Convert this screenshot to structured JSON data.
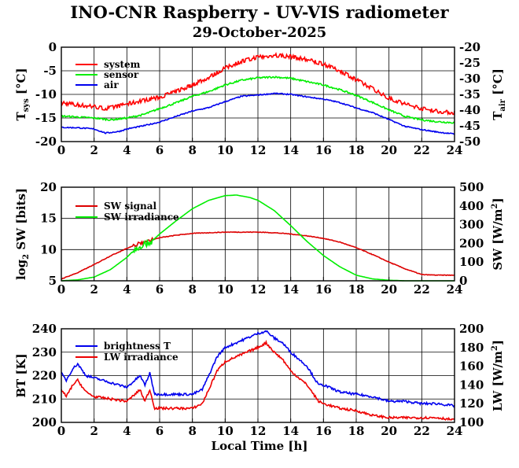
{
  "title": "INO-CNR Raspberry - UV-VIS radiometer",
  "subtitle": "29-October-2025",
  "xlabel": "Local Time [h]",
  "chart_data": [
    {
      "type": "line",
      "name": "temperature",
      "x_ticks": [
        "0",
        "2",
        "4",
        "6",
        "8",
        "10",
        "12",
        "14",
        "16",
        "18",
        "20",
        "22",
        "24"
      ],
      "xlim": [
        0,
        24
      ],
      "ylabel_left": "T",
      "ylabel_left_sub": "sys",
      "ylabel_left_unit": "[°C]",
      "ylim_left": [
        -20,
        0
      ],
      "yticks_left": [
        "0",
        "-5",
        "-10",
        "-15",
        "-20"
      ],
      "ylabel_right": "T",
      "ylabel_right_sub": "air",
      "ylabel_right_unit": "[°C]",
      "ylim_right": [
        -50,
        -20
      ],
      "yticks_right": [
        "-20",
        "-25",
        "-30",
        "-35",
        "-40",
        "-45",
        "-50"
      ],
      "series": [
        {
          "name": "system",
          "axis": "left",
          "color": "#ff0000",
          "x": [
            0,
            1,
            2,
            2.7,
            3.5,
            4,
            5,
            6,
            7,
            8,
            9,
            10,
            11,
            12,
            13,
            14,
            15,
            16,
            17,
            18,
            19,
            20,
            21,
            22,
            23,
            24
          ],
          "y": [
            -11.8,
            -12.2,
            -12.6,
            -13.0,
            -12.5,
            -12.0,
            -11.3,
            -10.6,
            -9.4,
            -8.0,
            -6.4,
            -4.4,
            -3.0,
            -2.1,
            -1.7,
            -2.0,
            -2.6,
            -3.6,
            -5.0,
            -6.9,
            -8.8,
            -10.8,
            -12.1,
            -13.0,
            -13.6,
            -13.9
          ]
        },
        {
          "name": "sensor",
          "axis": "left",
          "color": "#00ee00",
          "x": [
            0,
            1,
            2,
            3,
            4,
            5,
            6,
            7,
            8,
            9,
            10,
            11,
            12,
            13,
            14,
            15,
            16,
            17,
            18,
            19,
            20,
            21,
            22,
            23,
            24
          ],
          "y": [
            -14.6,
            -14.8,
            -15.0,
            -15.4,
            -15.0,
            -14.3,
            -13.0,
            -11.8,
            -10.4,
            -9.4,
            -8.0,
            -7.0,
            -6.5,
            -6.3,
            -6.6,
            -7.3,
            -8.0,
            -9.0,
            -10.2,
            -11.7,
            -13.3,
            -14.7,
            -15.4,
            -15.8,
            -16.0
          ]
        },
        {
          "name": "air",
          "axis": "right",
          "color": "#0000ee",
          "x": [
            0,
            1,
            2,
            2.7,
            3.5,
            4,
            5,
            6,
            7,
            8,
            9,
            10,
            11,
            12,
            13,
            14,
            15,
            16,
            17,
            18,
            19,
            20,
            21,
            22,
            23,
            24
          ],
          "y": [
            -45.5,
            -45.6,
            -46.0,
            -47.3,
            -46.8,
            -46.0,
            -45.0,
            -43.8,
            -42.0,
            -40.3,
            -39.2,
            -37.3,
            -35.6,
            -35.2,
            -34.7,
            -35.0,
            -35.8,
            -36.5,
            -37.6,
            -39.3,
            -40.8,
            -43.0,
            -45.2,
            -46.2,
            -47.0,
            -47.6
          ]
        }
      ]
    },
    {
      "type": "line",
      "name": "shortwave",
      "x_ticks": [
        "0",
        "2",
        "4",
        "6",
        "8",
        "10",
        "12",
        "14",
        "16",
        "18",
        "20",
        "22",
        "24"
      ],
      "xlim": [
        0,
        24
      ],
      "ylabel_left": "log",
      "ylabel_left_sub": "2",
      "ylabel_left_unit": "SW [bits]",
      "ylim_left": [
        5,
        20
      ],
      "yticks_left": [
        "20",
        "15",
        "10",
        "5"
      ],
      "ylabel_right": "SW [W/m",
      "ylabel_right_sup": "2",
      "ylabel_right_unit": "]",
      "ylim_right": [
        0,
        500
      ],
      "yticks_right": [
        "500",
        "400",
        "300",
        "200",
        "100",
        "0"
      ],
      "series": [
        {
          "name": "SW signal",
          "axis": "left",
          "color": "#dd0000",
          "x": [
            0,
            1,
            2,
            3,
            4,
            5,
            6,
            7,
            8,
            9,
            10,
            11,
            12,
            13,
            14,
            15,
            16,
            17,
            18,
            19,
            20,
            21,
            22,
            23,
            24
          ],
          "y": [
            5.3,
            6.3,
            7.6,
            9.0,
            10.2,
            11.2,
            11.9,
            12.3,
            12.6,
            12.7,
            12.8,
            12.8,
            12.8,
            12.7,
            12.5,
            12.2,
            11.8,
            11.2,
            10.3,
            9.2,
            8.0,
            6.9,
            6.0,
            5.9,
            5.9
          ]
        },
        {
          "name": "SW irradiance",
          "axis": "right",
          "color": "#00ee00",
          "x": [
            0,
            1,
            2,
            3,
            4,
            4.5,
            5,
            5.5,
            6,
            7,
            8,
            9,
            10,
            10.7,
            11.5,
            12,
            13,
            14,
            15,
            16,
            17,
            18,
            19,
            20,
            21,
            22,
            23,
            24
          ],
          "y": [
            0,
            5,
            20,
            60,
            125,
            170,
            195,
            210,
            250,
            320,
            385,
            430,
            455,
            458,
            445,
            430,
            375,
            295,
            210,
            135,
            75,
            30,
            10,
            3,
            0,
            0,
            0,
            0
          ]
        }
      ]
    },
    {
      "type": "line",
      "name": "longwave",
      "x_ticks": [
        "0",
        "2",
        "4",
        "6",
        "8",
        "10",
        "12",
        "14",
        "16",
        "18",
        "20",
        "22",
        "24"
      ],
      "xlim": [
        0,
        24
      ],
      "ylabel_left": "BT [K]",
      "ylim_left": [
        200,
        240
      ],
      "yticks_left": [
        "240",
        "230",
        "220",
        "210",
        "200"
      ],
      "ylabel_right": "LW [W/m",
      "ylabel_right_sup": "2",
      "ylabel_right_unit": "]",
      "ylim_right": [
        100,
        200
      ],
      "yticks_right": [
        "200",
        "180",
        "160",
        "140",
        "120",
        "100"
      ],
      "series": [
        {
          "name": "brightness T",
          "axis": "left",
          "color": "#0000ee",
          "x": [
            0,
            0.3,
            0.7,
            1.0,
            1.5,
            2,
            3,
            4,
            4.5,
            4.8,
            5.1,
            5.4,
            5.7,
            6,
            7,
            8,
            8.6,
            9,
            9.5,
            10,
            11,
            12,
            12.5,
            13,
            13.5,
            14,
            15,
            15.7,
            16,
            17,
            18,
            19,
            20,
            21,
            22,
            23,
            24
          ],
          "y": [
            221,
            218,
            223,
            225,
            220,
            219,
            217,
            215,
            218,
            220,
            216,
            221,
            212,
            212,
            212,
            212,
            214,
            220,
            228,
            232,
            235,
            238,
            239,
            236,
            234,
            230,
            224,
            216,
            216,
            213,
            212,
            211,
            209,
            209,
            208,
            208,
            207
          ]
        },
        {
          "name": "LW irradiance",
          "axis": "left",
          "color": "#ee0000",
          "x": [
            0,
            0.3,
            0.7,
            1.0,
            1.5,
            2,
            3,
            4,
            4.5,
            4.8,
            5.1,
            5.4,
            5.7,
            6,
            7,
            8,
            8.6,
            9,
            9.5,
            10,
            11,
            12,
            12.5,
            13,
            13.5,
            14,
            15,
            15.7,
            16,
            17,
            18,
            19,
            20,
            21,
            22,
            23,
            24
          ],
          "y": [
            214,
            211,
            216,
            218,
            213,
            211,
            210,
            209,
            212,
            214,
            209,
            214,
            206,
            206,
            206,
            206,
            208,
            214,
            222,
            226,
            229,
            232,
            234,
            230,
            227,
            222,
            216,
            209,
            208,
            206,
            205,
            203,
            202,
            202,
            202,
            202,
            201
          ]
        }
      ]
    }
  ],
  "legends": [
    [
      "system",
      "sensor",
      "air"
    ],
    [
      "SW signal",
      "SW irradiance"
    ],
    [
      "brightness T",
      "LW irradiance"
    ]
  ]
}
